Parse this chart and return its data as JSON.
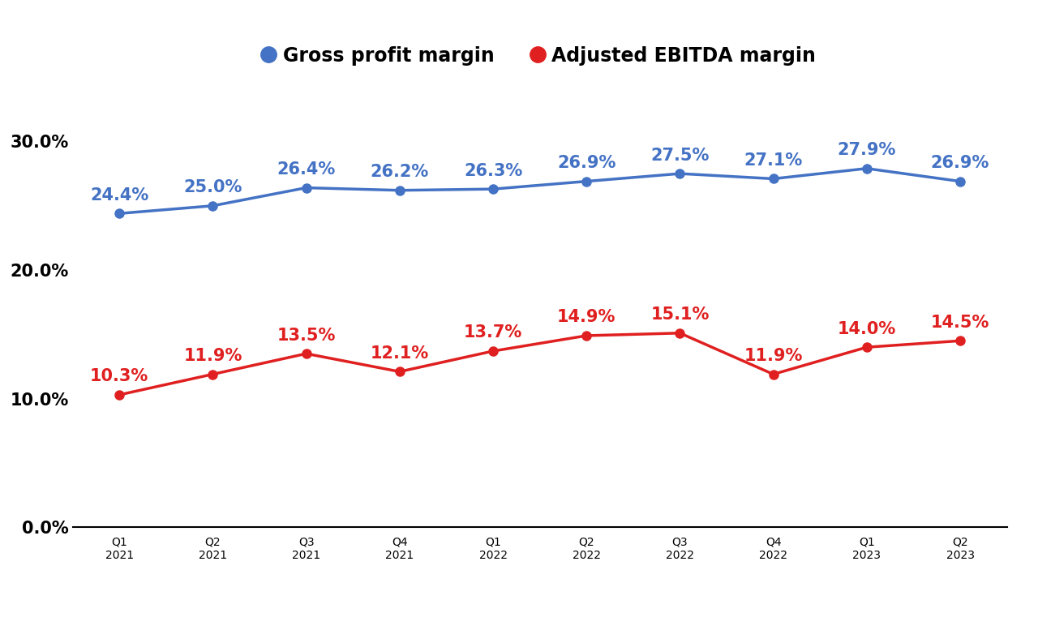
{
  "categories": [
    "Q1\n2021",
    "Q2\n2021",
    "Q3\n2021",
    "Q4\n2021",
    "Q1\n2022",
    "Q2\n2022",
    "Q3\n2022",
    "Q4\n2022",
    "Q1\n2023",
    "Q2\n2023"
  ],
  "gross_margin": [
    24.4,
    25.0,
    26.4,
    26.2,
    26.3,
    26.9,
    27.5,
    27.1,
    27.9,
    26.9
  ],
  "ebitda_margin": [
    10.3,
    11.9,
    13.5,
    12.1,
    13.7,
    14.9,
    15.1,
    11.9,
    14.0,
    14.5
  ],
  "gross_color": "#4472C4",
  "ebitda_color": "#E02020",
  "gross_label": "Gross profit margin",
  "ebitda_label": "Adjusted EBITDA margin",
  "yticks": [
    0.0,
    10.0,
    20.0,
    30.0
  ],
  "ylim": [
    -2.5,
    35
  ],
  "background_color": "#FFFFFF",
  "line_width": 2.5,
  "marker_size": 8,
  "annotation_fontsize": 15,
  "legend_fontsize": 17,
  "tick_fontsize": 15
}
